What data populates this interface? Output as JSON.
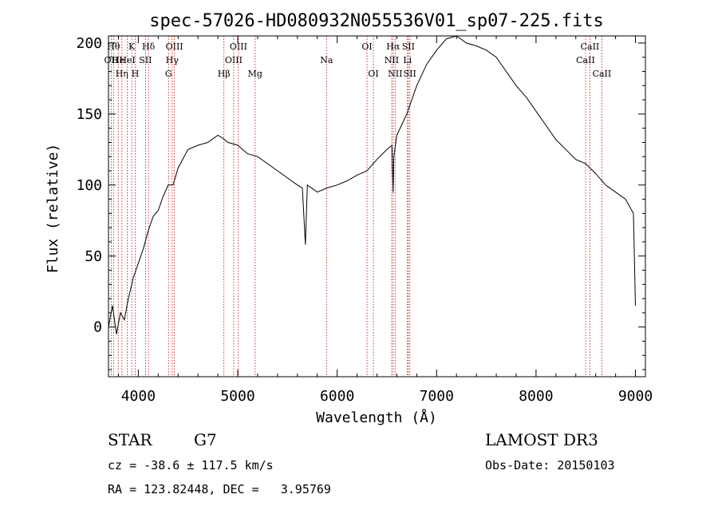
{
  "chart_data": {
    "type": "line",
    "title": "spec-57026-HD080932N055536V01_sp07-225.fits",
    "xlabel": "Wavelength (Å)",
    "ylabel": "Flux (relative)",
    "xlim": [
      3700,
      9100
    ],
    "ylim": [
      -35,
      205
    ],
    "xticks": [
      4000,
      5000,
      6000,
      7000,
      8000,
      9000
    ],
    "yticks": [
      0,
      50,
      100,
      150,
      200
    ],
    "series": [
      {
        "name": "flux",
        "x": [
          3700,
          3740,
          3780,
          3820,
          3860,
          3900,
          3950,
          4000,
          4050,
          4100,
          4150,
          4200,
          4250,
          4300,
          4350,
          4400,
          4500,
          4600,
          4700,
          4800,
          4850,
          4900,
          5000,
          5100,
          5200,
          5300,
          5400,
          5500,
          5600,
          5650,
          5680,
          5700,
          5800,
          5900,
          6000,
          6100,
          6200,
          6300,
          6400,
          6500,
          6550,
          6563,
          6570,
          6600,
          6700,
          6800,
          6900,
          7000,
          7100,
          7200,
          7300,
          7400,
          7500,
          7600,
          7700,
          7800,
          7900,
          8000,
          8100,
          8200,
          8300,
          8400,
          8500,
          8600,
          8700,
          8800,
          8900,
          8980,
          9000
        ],
        "y": [
          0,
          15,
          -5,
          10,
          5,
          20,
          35,
          45,
          55,
          68,
          78,
          82,
          92,
          100,
          100,
          112,
          125,
          128,
          130,
          135,
          133,
          130,
          128,
          122,
          120,
          115,
          110,
          105,
          100,
          98,
          58,
          100,
          95,
          98,
          100,
          103,
          107,
          110,
          118,
          125,
          128,
          95,
          120,
          135,
          150,
          170,
          185,
          195,
          203,
          205,
          200,
          198,
          195,
          190,
          180,
          170,
          162,
          152,
          142,
          132,
          125,
          118,
          115,
          108,
          100,
          95,
          90,
          80,
          15
        ],
        "color": "#000000"
      }
    ],
    "lines": [
      {
        "wl": 3727,
        "row": 2,
        "label": "OII"
      },
      {
        "wl": 3750,
        "row": 1,
        "label": "Hθ"
      },
      {
        "wl": 3798,
        "row": 2,
        "label": "He"
      },
      {
        "wl": 3835,
        "row": 3,
        "label": "Hη"
      },
      {
        "wl": 3889,
        "row": 2,
        "label": "HeI"
      },
      {
        "wl": 3934,
        "row": 1,
        "label": "K"
      },
      {
        "wl": 3969,
        "row": 3,
        "label": "H"
      },
      {
        "wl": 4072,
        "row": 2,
        "label": "SII"
      },
      {
        "wl": 4102,
        "row": 1,
        "label": "Hδ"
      },
      {
        "wl": 4304,
        "row": 3,
        "label": "G"
      },
      {
        "wl": 4340,
        "row": 2,
        "label": "Hγ"
      },
      {
        "wl": 4363,
        "row": 1,
        "label": "OIII"
      },
      {
        "wl": 4861,
        "row": 3,
        "label": "Hβ"
      },
      {
        "wl": 4959,
        "row": 2,
        "label": "OIII"
      },
      {
        "wl": 5007,
        "row": 1,
        "label": "OIII"
      },
      {
        "wl": 5175,
        "row": 3,
        "label": "Mg"
      },
      {
        "wl": 5893,
        "row": 2,
        "label": "Na"
      },
      {
        "wl": 6300,
        "row": 1,
        "label": "OI"
      },
      {
        "wl": 6364,
        "row": 3,
        "label": "OI"
      },
      {
        "wl": 6548,
        "row": 2,
        "label": "NII"
      },
      {
        "wl": 6563,
        "row": 1,
        "label": "Hα"
      },
      {
        "wl": 6583,
        "row": 3,
        "label": "NII"
      },
      {
        "wl": 6707,
        "row": 2,
        "label": "Li"
      },
      {
        "wl": 6716,
        "row": 1,
        "label": "SII"
      },
      {
        "wl": 6731,
        "row": 3,
        "label": "SII"
      },
      {
        "wl": 8498,
        "row": 2,
        "label": "CaII"
      },
      {
        "wl": 8542,
        "row": 1,
        "label": "CaII"
      },
      {
        "wl": 8662,
        "row": 3,
        "label": "CaII"
      }
    ],
    "line_color": "#cc0000"
  },
  "info": {
    "object_type": "STAR",
    "subclass": "G7",
    "survey": "LAMOST DR3",
    "cz": "cz = -38.6 ± 117.5 km/s",
    "obs_date": "Obs-Date: 20150103",
    "coords": "RA = 123.82448, DEC =   3.95769"
  }
}
